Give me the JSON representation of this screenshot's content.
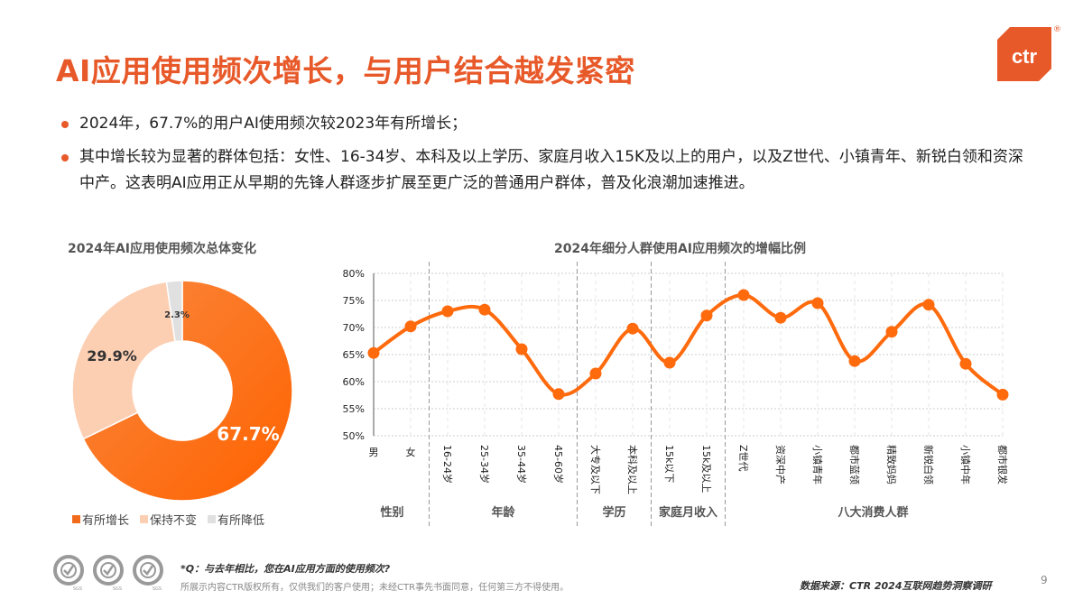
{
  "header": {
    "title": "AI应用使用频次增长，与用户结合越发紧密",
    "logo_text": "ctr",
    "logo_reg": "®",
    "brand_color": "#E8592A"
  },
  "bullets": [
    {
      "text": "2024年，67.7%的用户AI使用频次较2023年有所增长；"
    },
    {
      "text": "其中增长较为显著的群体包括：女性、16-34岁、本科及以上学历、家庭月收入15K及以上的用户，以及Z世代、小镇青年、新锐白领和资深中产。这表明AI应用正从早期的先锋人群逐步扩展至更广泛的普通用户群体，普及化浪潮加速推进。"
    }
  ],
  "chart_data": [
    {
      "type": "pie",
      "subtype": "donut",
      "title": "2024年AI应用使用频次总体变化",
      "categories": [
        "有所增长",
        "保持不变",
        "有所降低"
      ],
      "values": [
        67.7,
        29.9,
        2.3
      ],
      "labels": [
        "67.7%",
        "29.9%",
        "2.3%"
      ],
      "colors": [
        "#F26B1D",
        "#FCCFB3",
        "#E0E0E0"
      ],
      "legend_position": "bottom"
    },
    {
      "type": "line",
      "title": "2024年细分人群使用AI应用频次的增幅比例",
      "categories": [
        "男",
        "女",
        "16-24岁",
        "25-34岁",
        "35-44岁",
        "45-60岁",
        "大专及以下",
        "本科及以上",
        "15k以下",
        "15k及以上",
        "Z世代",
        "资深中产",
        "小镇青年",
        "都市蓝领",
        "精致妈妈",
        "新锐白领",
        "小镇中年",
        "都市银发"
      ],
      "values": [
        65.3,
        70.2,
        73.0,
        73.3,
        66.0,
        57.7,
        61.5,
        69.8,
        63.5,
        72.2,
        76.0,
        71.8,
        74.5,
        63.8,
        69.2,
        74.2,
        63.3,
        57.6
      ],
      "groups": [
        {
          "label": "性别",
          "start": 0,
          "end": 1
        },
        {
          "label": "年龄",
          "start": 2,
          "end": 5
        },
        {
          "label": "学历",
          "start": 6,
          "end": 7
        },
        {
          "label": "家庭月收入",
          "start": 8,
          "end": 9
        },
        {
          "label": "八大消费人群",
          "start": 10,
          "end": 17
        }
      ],
      "yticks": [
        "50%",
        "55%",
        "60%",
        "65%",
        "70%",
        "75%",
        "80%"
      ],
      "ylim": [
        50,
        80
      ],
      "xlabel": "",
      "ylabel": "",
      "grid": true,
      "color": "#FF6A0D"
    }
  ],
  "footer": {
    "question": "*Q：与去年相比，您在AI应用方面的使用频次?",
    "copyright": "所展示内容CTR版权所有，仅供我们的客户使用；未经CTR事先书面同意，任何第三方不得使用。",
    "source": "数据来源：CTR 2024互联网趋势洞察调研",
    "page_number": "9",
    "badge_label": "SGS"
  }
}
